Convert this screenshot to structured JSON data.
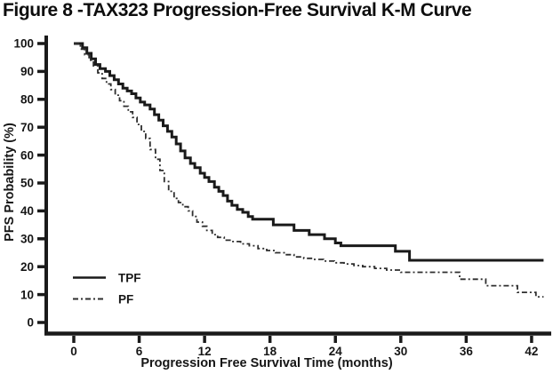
{
  "title": "Figure 8 -TAX323 Progression-Free Survival K-M Curve",
  "colors": {
    "axis": "#1a1a1a",
    "text": "#161616",
    "background": "#ffffff",
    "tpf_line": "#1a1a1a",
    "pf_line": "#2e2e2e"
  },
  "chart_data": {
    "type": "line",
    "subtype": "kaplan-meier-step",
    "title": "Figure 8 -TAX323 Progression-Free Survival K-M Curve",
    "xlabel": "Progression Free Survival Time (months)",
    "ylabel": "PFS Probability (%)",
    "xlim": [
      0,
      43.5
    ],
    "ylim": [
      0,
      100
    ],
    "x_ticks": [
      0,
      6,
      12,
      18,
      24,
      30,
      36,
      42
    ],
    "y_ticks": [
      0,
      10,
      20,
      30,
      40,
      50,
      60,
      70,
      80,
      90,
      100
    ],
    "grid": false,
    "legend_position": "lower-left",
    "series": [
      {
        "name": "TPF",
        "line_style": "solid",
        "points": [
          [
            0,
            100
          ],
          [
            0.8,
            98.5
          ],
          [
            1.2,
            96.5
          ],
          [
            1.6,
            94.5
          ],
          [
            2.0,
            92.5
          ],
          [
            2.4,
            91
          ],
          [
            2.9,
            90
          ],
          [
            3.3,
            88.5
          ],
          [
            3.7,
            87
          ],
          [
            4.1,
            85.5
          ],
          [
            4.5,
            84
          ],
          [
            4.9,
            83
          ],
          [
            5.3,
            82
          ],
          [
            5.7,
            80.5
          ],
          [
            6.1,
            79
          ],
          [
            6.5,
            78
          ],
          [
            7.0,
            76.5
          ],
          [
            7.4,
            74.5
          ],
          [
            7.8,
            72.5
          ],
          [
            8.2,
            70.5
          ],
          [
            8.6,
            68.5
          ],
          [
            9.0,
            66.5
          ],
          [
            9.4,
            64
          ],
          [
            9.8,
            61.5
          ],
          [
            10.2,
            59
          ],
          [
            10.7,
            57
          ],
          [
            11.1,
            55.5
          ],
          [
            11.6,
            53.5
          ],
          [
            12.0,
            52
          ],
          [
            12.4,
            50.5
          ],
          [
            12.9,
            48.5
          ],
          [
            13.3,
            47
          ],
          [
            13.7,
            45.5
          ],
          [
            14.1,
            43.5
          ],
          [
            14.5,
            42
          ],
          [
            15.0,
            40.5
          ],
          [
            15.5,
            39.5
          ],
          [
            16.0,
            38
          ],
          [
            16.4,
            37
          ],
          [
            18.3,
            35
          ],
          [
            20.2,
            33
          ],
          [
            21.6,
            31.5
          ],
          [
            23.0,
            30
          ],
          [
            24.0,
            28.5
          ],
          [
            24.5,
            27.5
          ],
          [
            29.5,
            25.5
          ],
          [
            30.8,
            22.3
          ],
          [
            43.1,
            22.3
          ]
        ]
      },
      {
        "name": "PF",
        "line_style": "dash-dot",
        "points": [
          [
            0,
            100
          ],
          [
            0.6,
            98
          ],
          [
            1.0,
            96
          ],
          [
            1.4,
            94
          ],
          [
            1.8,
            92
          ],
          [
            2.2,
            89.5
          ],
          [
            2.6,
            87.5
          ],
          [
            3.0,
            85.5
          ],
          [
            3.4,
            83.5
          ],
          [
            3.8,
            81.5
          ],
          [
            4.2,
            79.5
          ],
          [
            4.6,
            77.5
          ],
          [
            5.0,
            75.5
          ],
          [
            5.4,
            73.5
          ],
          [
            5.8,
            71
          ],
          [
            6.2,
            68.5
          ],
          [
            6.6,
            66
          ],
          [
            7.0,
            62
          ],
          [
            7.5,
            58.5
          ],
          [
            7.9,
            54.5
          ],
          [
            8.3,
            50.5
          ],
          [
            8.7,
            47
          ],
          [
            9.2,
            44.5
          ],
          [
            9.6,
            43
          ],
          [
            10.0,
            41.5
          ],
          [
            10.5,
            40
          ],
          [
            10.9,
            38
          ],
          [
            11.3,
            36
          ],
          [
            11.8,
            34.5
          ],
          [
            12.2,
            33
          ],
          [
            12.7,
            31.5
          ],
          [
            13.2,
            30.5
          ],
          [
            13.8,
            29.5
          ],
          [
            14.5,
            29
          ],
          [
            15.3,
            28.2
          ],
          [
            16.1,
            27.5
          ],
          [
            16.9,
            26.5
          ],
          [
            17.7,
            25.8
          ],
          [
            18.5,
            25
          ],
          [
            19.4,
            24.3
          ],
          [
            20.2,
            23.5
          ],
          [
            21.1,
            23
          ],
          [
            22.0,
            22.6
          ],
          [
            22.9,
            22
          ],
          [
            23.9,
            21.4
          ],
          [
            24.8,
            21
          ],
          [
            25.7,
            20.4
          ],
          [
            26.5,
            20
          ],
          [
            27.6,
            19.4
          ],
          [
            28.7,
            18.8
          ],
          [
            30.0,
            18
          ],
          [
            35.4,
            15.5
          ],
          [
            37.8,
            13.2
          ],
          [
            40.7,
            10.8
          ],
          [
            42.4,
            9.2
          ],
          [
            43.1,
            9.2
          ]
        ]
      }
    ]
  }
}
